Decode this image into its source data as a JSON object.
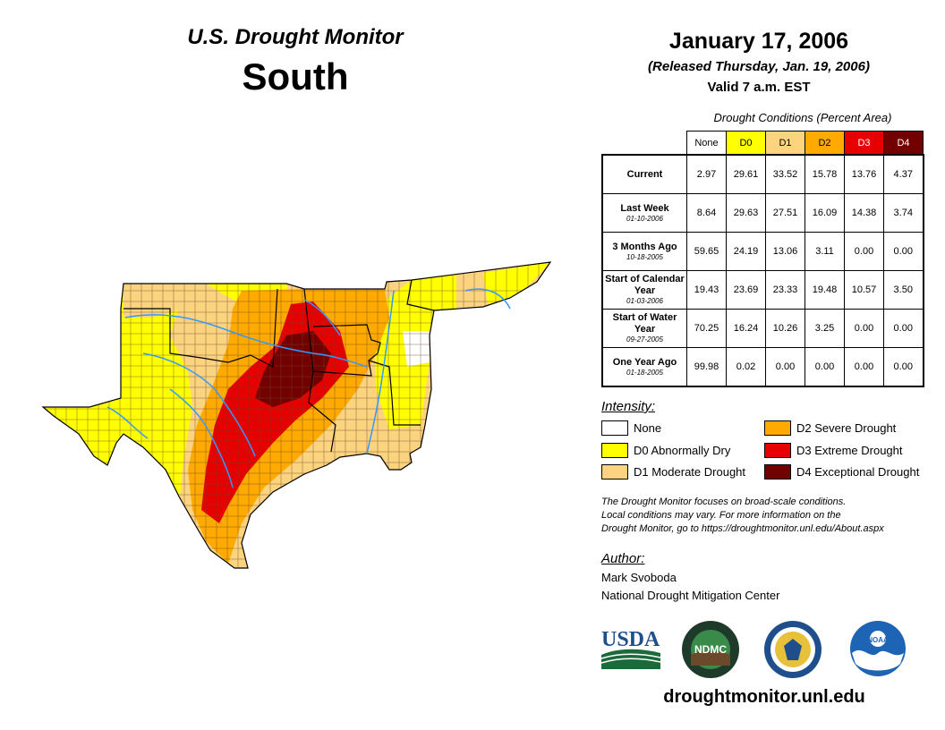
{
  "header": {
    "subtitle": "U.S. Drought Monitor",
    "region": "South",
    "date": "January 17, 2006",
    "released": "(Released Thursday, Jan. 19, 2006)",
    "valid": "Valid 7 a.m. EST"
  },
  "table": {
    "caption": "Drought Conditions (Percent Area)",
    "columns": [
      "None",
      "D0",
      "D1",
      "D2",
      "D3",
      "D4"
    ],
    "rows": [
      {
        "label": "Current",
        "date": "",
        "values": [
          "2.97",
          "29.61",
          "33.52",
          "15.78",
          "13.76",
          "4.37"
        ]
      },
      {
        "label": "Last Week",
        "date": "01-10-2006",
        "values": [
          "8.64",
          "29.63",
          "27.51",
          "16.09",
          "14.38",
          "3.74"
        ]
      },
      {
        "label": "3 Months Ago",
        "date": "10-18-2005",
        "values": [
          "59.65",
          "24.19",
          "13.06",
          "3.11",
          "0.00",
          "0.00"
        ]
      },
      {
        "label": "Start of Calendar Year",
        "date": "01-03-2006",
        "values": [
          "19.43",
          "23.69",
          "23.33",
          "19.48",
          "10.57",
          "3.50"
        ]
      },
      {
        "label": "Start of Water Year",
        "date": "09-27-2005",
        "values": [
          "70.25",
          "16.24",
          "10.26",
          "3.25",
          "0.00",
          "0.00"
        ]
      },
      {
        "label": "One Year Ago",
        "date": "01-18-2005",
        "values": [
          "99.98",
          "0.02",
          "0.00",
          "0.00",
          "0.00",
          "0.00"
        ]
      }
    ]
  },
  "intensity": {
    "title": "Intensity:",
    "items": [
      {
        "label": "None",
        "color": "#ffffff"
      },
      {
        "label": "D0 Abnormally Dry",
        "color": "#ffff00"
      },
      {
        "label": "D1 Moderate Drought",
        "color": "#fcd37f"
      },
      {
        "label": "D2 Severe Drought",
        "color": "#ffaa00"
      },
      {
        "label": "D3 Extreme Drought",
        "color": "#e60000"
      },
      {
        "label": "D4 Exceptional Drought",
        "color": "#730000"
      }
    ]
  },
  "notes": {
    "line1": "The Drought Monitor focuses on broad-scale conditions.",
    "line2": "Local conditions may vary. For more information on the",
    "line3": "Drought Monitor, go to https://droughtmonitor.unl.edu/About.aspx"
  },
  "author": {
    "title": "Author:",
    "name": "Mark Svoboda",
    "org": "National Drought Mitigation Center"
  },
  "logos": {
    "usda": "USDA",
    "ndmc": "NDMC",
    "noaa": "NOAA"
  },
  "site": "droughtmonitor.unl.edu",
  "colors": {
    "none": "#ffffff",
    "d0": "#ffff00",
    "d1": "#fcd37f",
    "d2": "#ffaa00",
    "d3": "#e60000",
    "d4": "#730000",
    "river": "#3399ff",
    "county": "#6b4a2b"
  }
}
